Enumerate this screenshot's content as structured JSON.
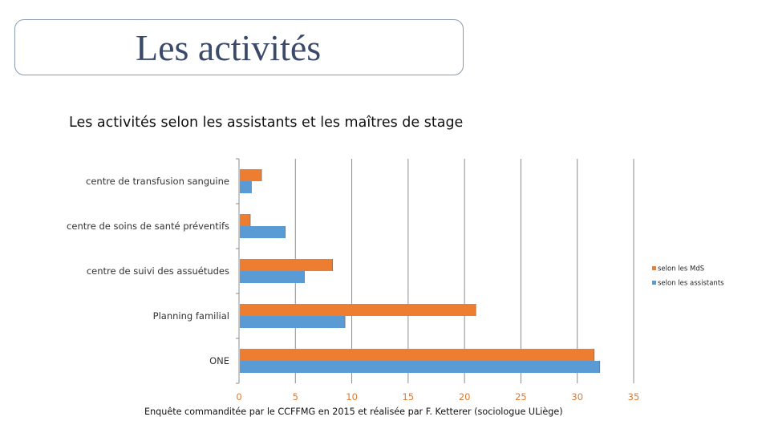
{
  "slide": {
    "title": "Les activités",
    "caption": "Enquête commanditée par le CCFFMG en 2015 et réalisée par F. Ketterer (sociologue ULiège)"
  },
  "colors": {
    "series_mds": "#ed7d31",
    "series_assistants": "#5b9bd5",
    "tick_text": "#e07a2e",
    "grid": "#8c8c8c"
  },
  "chart_data": {
    "type": "bar",
    "orientation": "horizontal",
    "title": "Les activités selon les assistants et les maîtres de stage",
    "categories": [
      "centre de transfusion sanguine",
      "centre de soins de santé préventifs",
      "centre de suivi des assuétudes",
      "Planning familial",
      "ONE"
    ],
    "series": [
      {
        "name": "selon les MdS",
        "values": [
          2,
          1,
          8.3,
          21,
          31.5
        ]
      },
      {
        "name": "selon les assistants",
        "values": [
          1.1,
          4.1,
          5.8,
          9.4,
          32
        ]
      }
    ],
    "xlim": [
      0,
      35
    ],
    "xticks": [
      0,
      5,
      10,
      15,
      20,
      25,
      30,
      35
    ],
    "grid": true,
    "legend_position": "right"
  }
}
